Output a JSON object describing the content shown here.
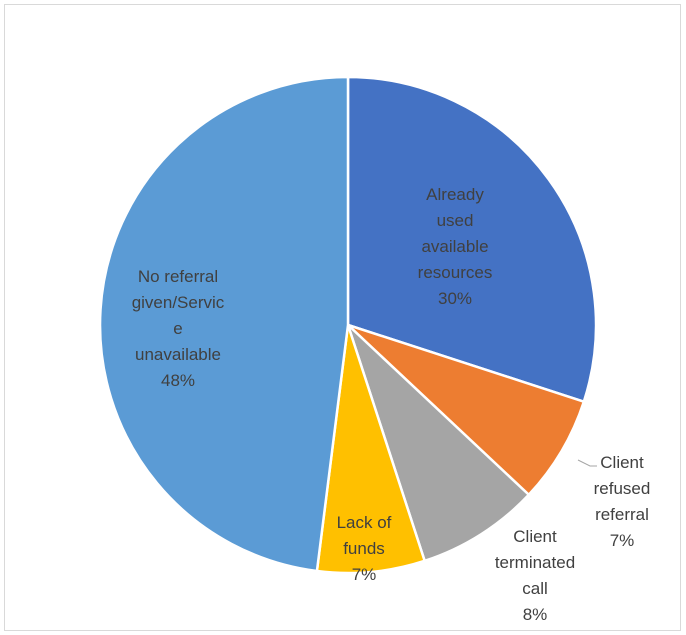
{
  "chart_data": {
    "type": "pie",
    "title": "",
    "slices": [
      {
        "lines": [
          "Already",
          "used",
          "available",
          "resources"
        ],
        "pct_label": "30%",
        "value": 30,
        "color": "#4472c4",
        "text_color": "#404040"
      },
      {
        "lines": [
          "Client",
          "refused",
          "referral"
        ],
        "pct_label": "7%",
        "value": 7,
        "color": "#ed7d31",
        "text_color": "#404040"
      },
      {
        "lines": [
          "Client",
          "terminated",
          "call"
        ],
        "pct_label": "8%",
        "value": 8,
        "color": "#a5a5a5",
        "text_color": "#404040"
      },
      {
        "lines": [
          "Lack of",
          "funds"
        ],
        "pct_label": "7%",
        "value": 7,
        "color": "#ffc000",
        "text_color": "#404040"
      },
      {
        "lines": [
          "No referral",
          "given/Servic",
          "e",
          "unavailable"
        ],
        "pct_label": "48%",
        "value": 48,
        "color": "#5b9bd5",
        "text_color": "#404040"
      }
    ]
  }
}
